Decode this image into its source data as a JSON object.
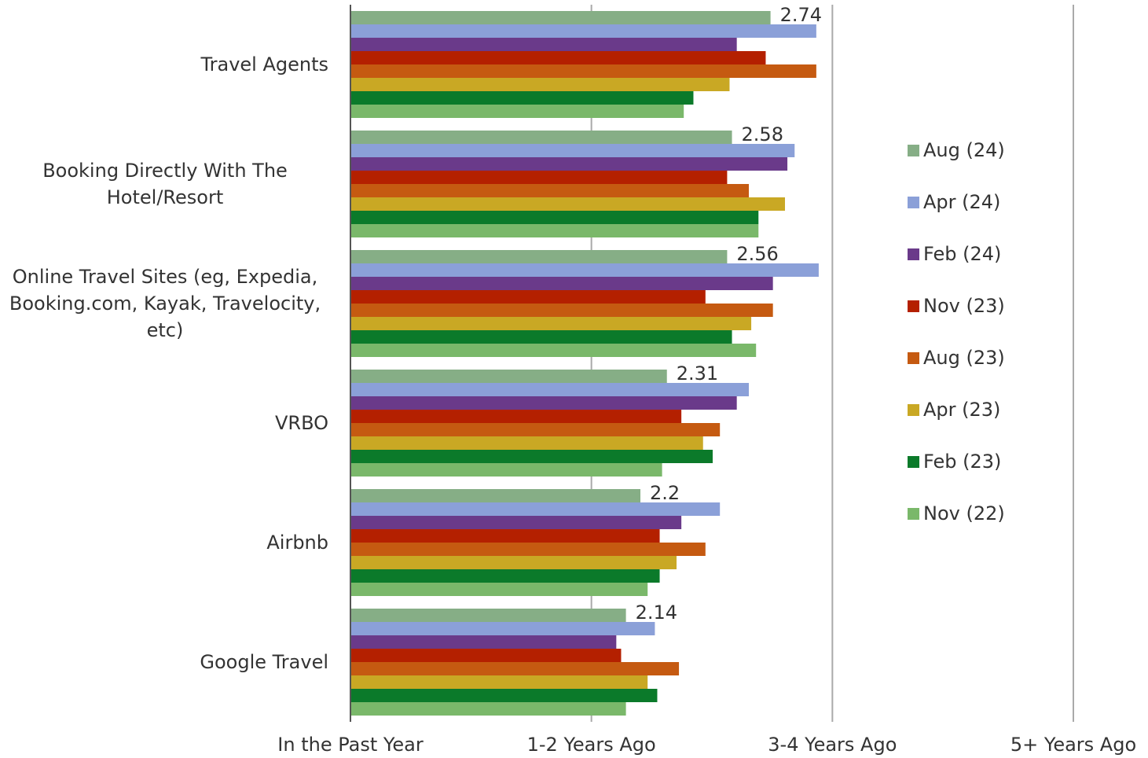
{
  "chart_data": {
    "type": "barh",
    "categories": [
      "Travel Agents",
      "Booking Directly With The Hotel/Resort",
      "Online Travel Sites (eg, Expedia, Booking.com, Kayak, Travelocity, etc)",
      "VRBO",
      "Airbnb",
      "Google Travel"
    ],
    "series": [
      {
        "name": "Aug (24)",
        "color": "#86ae86",
        "labels": true,
        "values": [
          2.74,
          2.58,
          2.56,
          2.31,
          2.2,
          2.14
        ]
      },
      {
        "name": "Apr (24)",
        "color": "#8ba0d8",
        "values": [
          2.93,
          2.84,
          2.94,
          2.65,
          2.53,
          2.26
        ]
      },
      {
        "name": "Feb (24)",
        "color": "#6a3a8a",
        "values": [
          2.6,
          2.81,
          2.75,
          2.6,
          2.37,
          2.1
        ]
      },
      {
        "name": "Nov (23)",
        "color": "#b42000",
        "values": [
          2.72,
          2.56,
          2.47,
          2.37,
          2.28,
          2.12
        ]
      },
      {
        "name": "Aug (23)",
        "color": "#c55a11",
        "values": [
          2.93,
          2.65,
          2.75,
          2.53,
          2.47,
          2.36
        ]
      },
      {
        "name": "Apr (23)",
        "color": "#c9a824",
        "values": [
          2.57,
          2.8,
          2.66,
          2.46,
          2.35,
          2.23
        ]
      },
      {
        "name": "Feb (23)",
        "color": "#0b7a2a",
        "values": [
          2.42,
          2.69,
          2.58,
          2.5,
          2.28,
          2.27
        ]
      },
      {
        "name": "Nov (22)",
        "color": "#7ab86a",
        "values": [
          2.38,
          2.69,
          2.68,
          2.29,
          2.23,
          2.14
        ]
      }
    ],
    "xlim": [
      1,
      4
    ],
    "xticks": [
      {
        "value": 1,
        "label": "In the Past Year"
      },
      {
        "value": 2,
        "label": "1-2 Years Ago"
      },
      {
        "value": 3,
        "label": "3-4 Years Ago"
      },
      {
        "value": 4,
        "label": "5+ Years Ago"
      }
    ],
    "grid": true,
    "legend": "right"
  }
}
